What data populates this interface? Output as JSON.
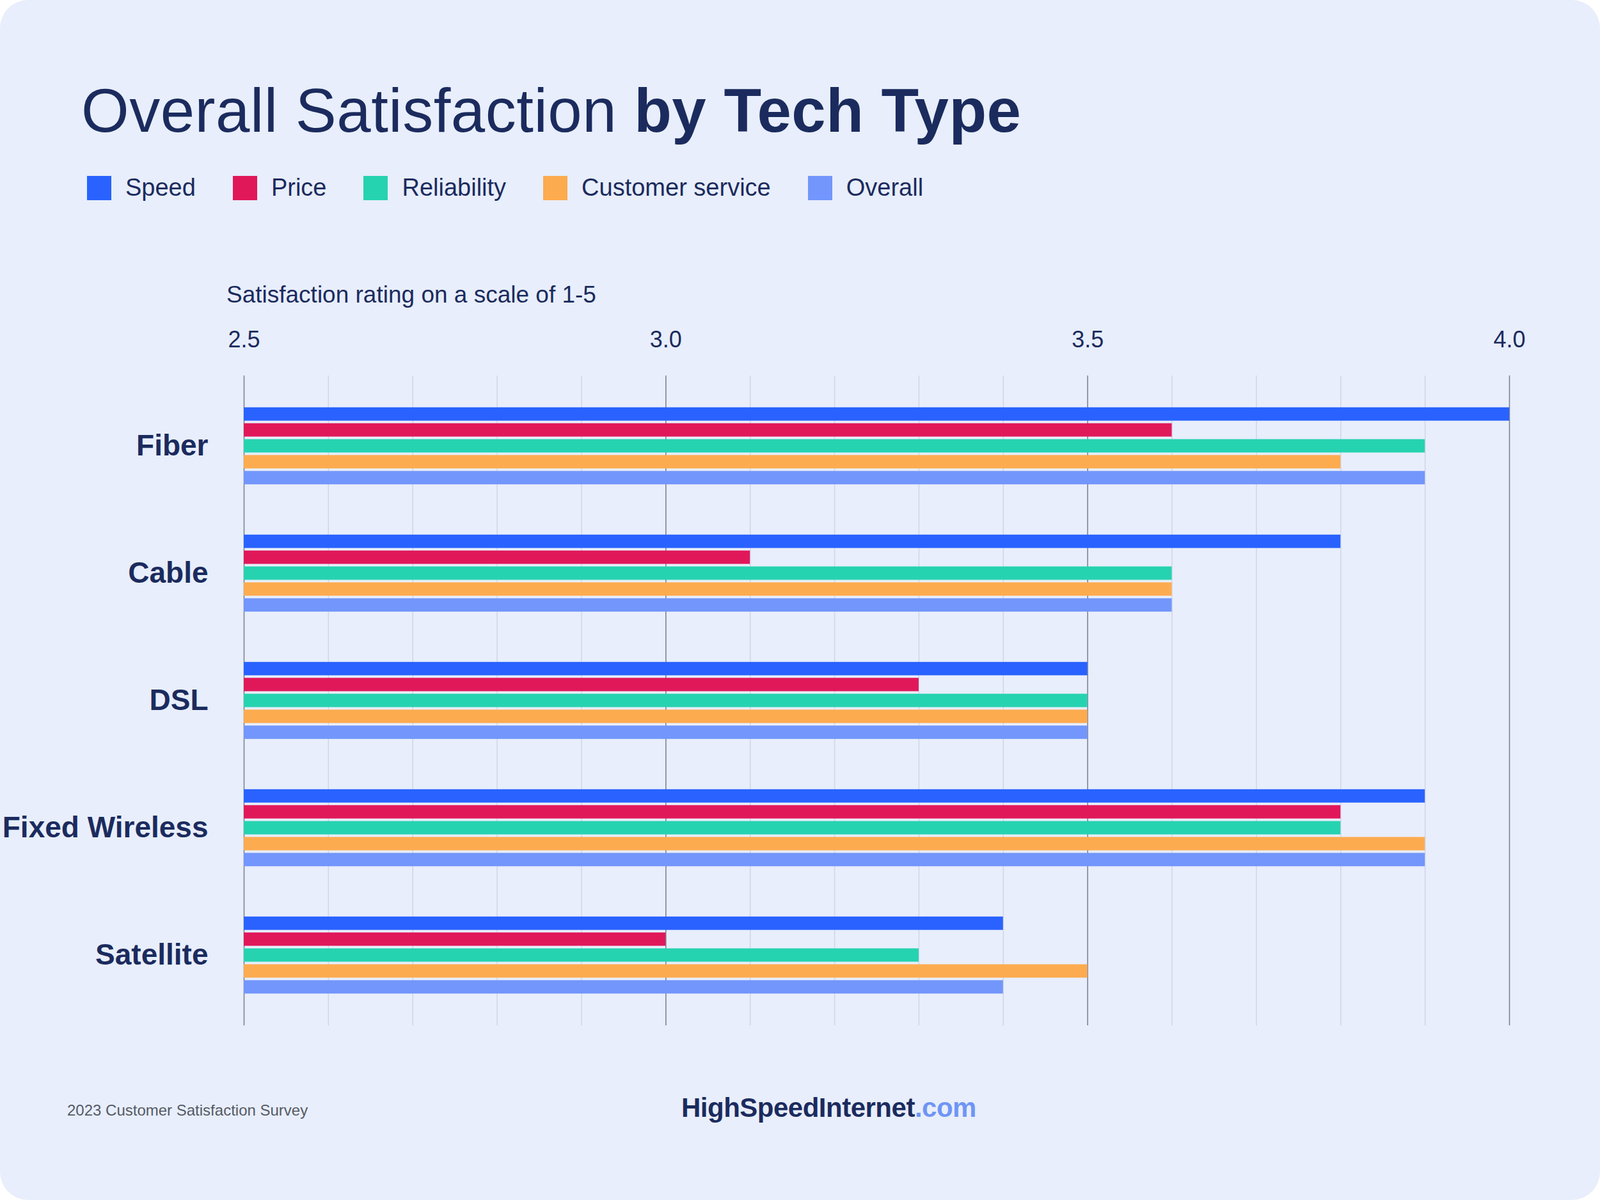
{
  "chart_data": {
    "type": "bar",
    "orientation": "horizontal",
    "title": "Overall Satisfaction by Tech Type",
    "x_label": "Satisfaction rating on a scale of 1-5",
    "categories": [
      "Fiber",
      "Cable",
      "DSL",
      "Fixed Wireless",
      "Satellite"
    ],
    "series": [
      {
        "name": "Speed",
        "color": "#2962ff",
        "values": [
          4.0,
          3.8,
          3.5,
          3.9,
          3.4
        ]
      },
      {
        "name": "Price",
        "color": "#e0185a",
        "values": [
          3.6,
          3.1,
          3.3,
          3.8,
          3.0
        ]
      },
      {
        "name": "Reliability",
        "color": "#26d3b0",
        "values": [
          3.9,
          3.6,
          3.5,
          3.8,
          3.3
        ]
      },
      {
        "name": "Customer service",
        "color": "#fdab4f",
        "values": [
          3.8,
          3.6,
          3.5,
          3.9,
          3.5
        ]
      },
      {
        "name": "Overall",
        "color": "#7296fb",
        "values": [
          3.9,
          3.6,
          3.5,
          3.9,
          3.4
        ]
      }
    ],
    "xlim": [
      2.5,
      4.0
    ],
    "xticks": [
      2.5,
      {
        "value": 3,
        "label": "3.0"
      },
      3.5,
      {
        "value": 4,
        "label": "4.0"
      }
    ],
    "grid": true,
    "legend": "top",
    "source": "2023 Customer Satisfaction Survey",
    "logo": "HighSpeedInternet.com"
  }
}
